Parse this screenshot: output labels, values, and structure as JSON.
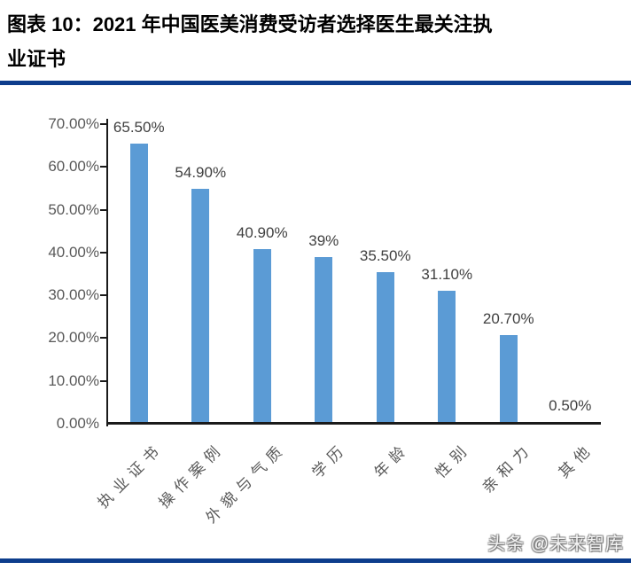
{
  "title": {
    "line1": "图表 10：2021 年中国医美消费受访者选择医生最关注执",
    "line2": "业证书"
  },
  "footer": {
    "text": "头条 @未来智库"
  },
  "colors": {
    "bar": "#5B9BD5",
    "rule": "#0D3D8C",
    "axis": "#1A1A1A",
    "tick_label": "#595959",
    "data_label": "#404040"
  },
  "chart_data": {
    "type": "bar",
    "title": "2021 年中国医美消费受访者选择医生最关注执业证书",
    "categories": [
      "执业证书",
      "操作案例",
      "外貌与气质",
      "学历",
      "年龄",
      "性别",
      "亲和力",
      "其他"
    ],
    "values": [
      65.5,
      54.9,
      40.9,
      39,
      35.5,
      31.1,
      20.7,
      0.5
    ],
    "data_labels": [
      "65.50%",
      "54.90%",
      "40.90%",
      "39%",
      "35.50%",
      "31.10%",
      "20.70%",
      "0.50%"
    ],
    "y_ticks": [
      {
        "value": 0,
        "label": "0.00%"
      },
      {
        "value": 10,
        "label": "10.00%"
      },
      {
        "value": 20,
        "label": "20.00%"
      },
      {
        "value": 30,
        "label": "30.00%"
      },
      {
        "value": 40,
        "label": "40.00%"
      },
      {
        "value": 50,
        "label": "50.00%"
      },
      {
        "value": 60,
        "label": "60.00%"
      },
      {
        "value": 70,
        "label": "70.00%"
      }
    ],
    "ylim": [
      0,
      70
    ],
    "xlabel": "",
    "ylabel": "",
    "grid": false,
    "legend": "none",
    "bar_color": "#5B9BD5"
  }
}
